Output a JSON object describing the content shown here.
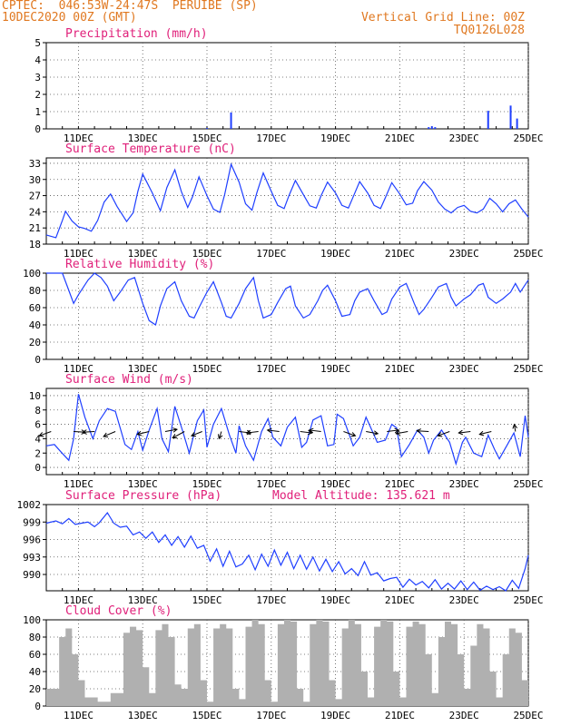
{
  "header": {
    "line1": "CPTEC:  046:53W-24:47S  PERUIBE (SP)",
    "line2": "10DEC2020 00Z (GMT)",
    "grid_note": "Vertical Grid Line: 00Z",
    "run_code": "TQ0126L028"
  },
  "colors": {
    "line": "#1f3fff",
    "title": "#e0207a",
    "header": "#e07820",
    "cloud": "#b0b0b0",
    "arrow": "#000000"
  },
  "x_axis": {
    "range_days": [
      10,
      25
    ],
    "ticks": [
      {
        "day": 11,
        "label": "11DEC"
      },
      {
        "day": 13,
        "label": "13DEC"
      },
      {
        "day": 15,
        "label": "15DEC"
      },
      {
        "day": 17,
        "label": "17DEC"
      },
      {
        "day": 19,
        "label": "19DEC"
      },
      {
        "day": 21,
        "label": "21DEC"
      },
      {
        "day": 23,
        "label": "23DEC"
      },
      {
        "day": 25,
        "label": "25DEC"
      }
    ]
  },
  "chart_data": [
    {
      "id": "precip",
      "type": "bar",
      "title": "Precipitation (mm/h)",
      "ylim": [
        0,
        5
      ],
      "yticks": [
        0,
        1,
        2,
        3,
        4,
        5
      ],
      "x": [
        15.0,
        15.75,
        21.9,
        22.0,
        22.1,
        23.75,
        24.45,
        24.65
      ],
      "values": [
        0.05,
        0.95,
        0.1,
        0.15,
        0.1,
        1.05,
        1.35,
        0.6
      ]
    },
    {
      "id": "temp",
      "type": "line",
      "title": "Surface Temperature (nC)",
      "ylim": [
        18,
        34
      ],
      "yticks": [
        18,
        21,
        24,
        27,
        30,
        33
      ],
      "x": [
        10.0,
        10.3,
        10.5,
        10.6,
        10.8,
        11.0,
        11.2,
        11.4,
        11.6,
        11.8,
        12.0,
        12.2,
        12.5,
        12.7,
        12.85,
        13.0,
        13.3,
        13.55,
        13.75,
        14.0,
        14.2,
        14.4,
        14.55,
        14.75,
        15.0,
        15.2,
        15.4,
        15.55,
        15.75,
        16.0,
        16.2,
        16.4,
        16.55,
        16.75,
        17.0,
        17.2,
        17.4,
        17.55,
        17.75,
        18.0,
        18.2,
        18.4,
        18.55,
        18.75,
        19.0,
        19.2,
        19.4,
        19.55,
        19.75,
        20.0,
        20.2,
        20.4,
        20.55,
        20.75,
        21.0,
        21.2,
        21.4,
        21.55,
        21.75,
        22.0,
        22.2,
        22.4,
        22.6,
        22.8,
        23.0,
        23.2,
        23.4,
        23.6,
        23.8,
        24.0,
        24.2,
        24.4,
        24.6,
        24.8,
        25.0
      ],
      "values": [
        19.7,
        19.2,
        22.4,
        24.1,
        22.3,
        21.2,
        20.9,
        20.4,
        22.4,
        25.8,
        27.3,
        25.0,
        22.2,
        23.8,
        27.8,
        31.0,
        27.5,
        24.2,
        28.5,
        31.8,
        27.8,
        24.8,
        26.8,
        30.5,
        27.0,
        24.5,
        23.9,
        27.2,
        32.8,
        29.5,
        25.5,
        24.3,
        27.5,
        31.2,
        27.8,
        25.2,
        24.6,
        27.0,
        29.8,
        27.2,
        25.1,
        24.7,
        27.0,
        29.5,
        27.5,
        25.2,
        24.7,
        26.8,
        29.6,
        27.5,
        25.2,
        24.6,
        26.6,
        29.4,
        27.3,
        25.3,
        25.6,
        27.9,
        29.6,
        28.0,
        25.8,
        24.5,
        23.8,
        24.8,
        25.2,
        24.1,
        23.8,
        24.5,
        26.5,
        25.5,
        24.0,
        25.5,
        26.2,
        24.5,
        23.0
      ]
    },
    {
      "id": "rh",
      "type": "line",
      "title": "Relative Humidity (%)",
      "ylim": [
        0,
        100
      ],
      "yticks": [
        0,
        20,
        40,
        60,
        80,
        100
      ],
      "x": [
        10.0,
        10.3,
        10.5,
        10.7,
        10.85,
        11.0,
        11.3,
        11.5,
        11.7,
        11.9,
        12.1,
        12.3,
        12.55,
        12.75,
        13.0,
        13.2,
        13.4,
        13.55,
        13.75,
        14.0,
        14.2,
        14.45,
        14.6,
        14.75,
        15.0,
        15.2,
        15.45,
        15.6,
        15.75,
        16.0,
        16.2,
        16.45,
        16.6,
        16.75,
        17.0,
        17.2,
        17.45,
        17.6,
        17.75,
        18.0,
        18.2,
        18.45,
        18.6,
        18.75,
        19.0,
        19.2,
        19.45,
        19.6,
        19.75,
        20.0,
        20.2,
        20.45,
        20.6,
        20.75,
        21.0,
        21.2,
        21.45,
        21.6,
        21.75,
        22.0,
        22.2,
        22.45,
        22.6,
        22.75,
        23.0,
        23.2,
        23.45,
        23.6,
        23.75,
        24.0,
        24.2,
        24.45,
        24.6,
        24.75,
        25.0
      ],
      "values": [
        100,
        100,
        100,
        80,
        65,
        75,
        92,
        100,
        95,
        85,
        68,
        78,
        92,
        95,
        65,
        45,
        40,
        62,
        82,
        90,
        68,
        50,
        48,
        60,
        78,
        90,
        66,
        50,
        48,
        65,
        82,
        95,
        68,
        48,
        52,
        66,
        82,
        85,
        62,
        48,
        52,
        68,
        80,
        86,
        68,
        50,
        52,
        68,
        78,
        82,
        68,
        52,
        55,
        70,
        84,
        88,
        65,
        52,
        58,
        72,
        84,
        88,
        72,
        62,
        70,
        75,
        86,
        88,
        72,
        65,
        70,
        78,
        88,
        78,
        92
      ]
    },
    {
      "id": "wind",
      "type": "line",
      "title": "Surface Wind (m/s)",
      "ylim": [
        -1,
        11
      ],
      "yticks": [
        0,
        2,
        4,
        6,
        8,
        10
      ],
      "x": [
        10.0,
        10.25,
        10.45,
        10.7,
        10.85,
        11.0,
        11.2,
        11.45,
        11.65,
        11.9,
        12.15,
        12.45,
        12.65,
        12.85,
        13.0,
        13.2,
        13.45,
        13.6,
        13.8,
        14.0,
        14.25,
        14.45,
        14.7,
        14.9,
        15.0,
        15.2,
        15.45,
        15.7,
        15.9,
        16.0,
        16.2,
        16.45,
        16.7,
        16.9,
        17.05,
        17.3,
        17.5,
        17.75,
        17.95,
        18.1,
        18.3,
        18.55,
        18.75,
        18.95,
        19.05,
        19.25,
        19.55,
        19.75,
        19.95,
        20.05,
        20.3,
        20.55,
        20.75,
        20.9,
        21.05,
        21.3,
        21.55,
        21.75,
        21.9,
        22.05,
        22.3,
        22.55,
        22.75,
        22.95,
        23.05,
        23.3,
        23.55,
        23.75,
        23.95,
        24.1,
        24.35,
        24.55,
        24.75,
        24.9,
        25.0
      ],
      "values": [
        3.0,
        3.2,
        2.2,
        1.0,
        4.0,
        10.2,
        7.0,
        4.0,
        6.5,
        8.2,
        7.8,
        3.2,
        2.5,
        5.0,
        2.4,
        5.2,
        8.2,
        4.0,
        2.2,
        8.5,
        5.0,
        2.0,
        6.5,
        8.0,
        2.8,
        6.0,
        8.2,
        4.5,
        2.0,
        5.8,
        3.0,
        1.0,
        5.0,
        6.8,
        4.2,
        3.0,
        5.6,
        7.0,
        2.8,
        3.5,
        6.6,
        7.2,
        3.0,
        3.2,
        7.4,
        6.8,
        3.0,
        4.2,
        7.0,
        6.0,
        3.5,
        3.8,
        6.0,
        5.5,
        1.5,
        3.2,
        5.2,
        4.2,
        2.0,
        3.8,
        5.2,
        3.5,
        0.5,
        3.5,
        4.2,
        2.0,
        1.5,
        4.5,
        2.5,
        1.2,
        3.2,
        4.8,
        1.5,
        7.2,
        4.2
      ],
      "vector_markers": [
        {
          "day": 10.15,
          "dx": -1,
          "dy": 0.6
        },
        {
          "day": 10.85,
          "dx": 1,
          "dy": 0.1
        },
        {
          "day": 11.5,
          "dx": -1,
          "dy": 0.1
        },
        {
          "day": 12.15,
          "dx": -1,
          "dy": 0.7
        },
        {
          "day": 13.2,
          "dx": -1,
          "dy": 0.4
        },
        {
          "day": 13.7,
          "dx": 1,
          "dy": -0.3
        },
        {
          "day": 14.3,
          "dx": -1,
          "dy": 0.9
        },
        {
          "day": 14.85,
          "dx": -0.9,
          "dy": 0.6
        },
        {
          "day": 15.45,
          "dx": -0.2,
          "dy": 1
        },
        {
          "day": 16.0,
          "dx": 1,
          "dy": 0.2
        },
        {
          "day": 16.6,
          "dx": -1,
          "dy": 0.2
        },
        {
          "day": 17.25,
          "dx": -1,
          "dy": -0.2
        },
        {
          "day": 17.9,
          "dx": 1,
          "dy": 0.2
        },
        {
          "day": 18.55,
          "dx": -1,
          "dy": -0.2
        },
        {
          "day": 19.25,
          "dx": 1,
          "dy": 0.6
        },
        {
          "day": 19.95,
          "dx": 1,
          "dy": 0.3
        },
        {
          "day": 20.6,
          "dx": 1,
          "dy": -0.2
        },
        {
          "day": 21.25,
          "dx": -1,
          "dy": 0.3
        },
        {
          "day": 21.9,
          "dx": -1,
          "dy": -0.1
        },
        {
          "day": 22.55,
          "dx": -1,
          "dy": 0.6
        },
        {
          "day": 23.2,
          "dx": -1,
          "dy": 0.2
        },
        {
          "day": 23.85,
          "dx": -1,
          "dy": 0.4
        },
        {
          "day": 24.6,
          "dx": -0.1,
          "dy": -1
        }
      ]
    },
    {
      "id": "press",
      "type": "line",
      "title": "Surface Pressure (hPa)",
      "extra_title": "Model Altitude: 135.621 m",
      "ylim": [
        987.2,
        1002
      ],
      "yticks": [
        990,
        993,
        996,
        999,
        1002
      ],
      "x": [
        10.0,
        10.3,
        10.5,
        10.7,
        10.9,
        11.1,
        11.3,
        11.5,
        11.65,
        11.9,
        12.1,
        12.3,
        12.5,
        12.7,
        12.9,
        13.1,
        13.3,
        13.5,
        13.7,
        13.9,
        14.1,
        14.3,
        14.5,
        14.7,
        14.9,
        15.1,
        15.3,
        15.5,
        15.7,
        15.9,
        16.1,
        16.3,
        16.5,
        16.7,
        16.9,
        17.1,
        17.3,
        17.5,
        17.7,
        17.9,
        18.1,
        18.3,
        18.5,
        18.7,
        18.9,
        19.1,
        19.3,
        19.5,
        19.7,
        19.9,
        20.1,
        20.3,
        20.5,
        20.7,
        20.9,
        21.1,
        21.3,
        21.5,
        21.7,
        21.9,
        22.1,
        22.3,
        22.5,
        22.7,
        22.9,
        23.1,
        23.3,
        23.5,
        23.7,
        23.9,
        24.1,
        24.3,
        24.5,
        24.7,
        24.9,
        25.0
      ],
      "values": [
        998.8,
        999.2,
        998.7,
        999.6,
        998.6,
        998.8,
        999.0,
        998.2,
        998.9,
        1000.6,
        998.8,
        998.1,
        998.3,
        996.8,
        997.3,
        996.2,
        997.3,
        995.5,
        996.8,
        995.0,
        996.5,
        994.7,
        996.6,
        994.5,
        995.0,
        992.3,
        994.4,
        991.4,
        994.0,
        991.3,
        991.8,
        993.3,
        990.8,
        993.5,
        991.4,
        994.2,
        991.6,
        993.8,
        991.0,
        993.3,
        990.9,
        993.0,
        990.6,
        992.6,
        990.5,
        992.2,
        990.1,
        991.0,
        989.8,
        992.2,
        989.9,
        990.3,
        988.9,
        989.3,
        989.5,
        987.8,
        989.2,
        988.2,
        988.8,
        987.7,
        989.1,
        987.5,
        988.5,
        987.5,
        988.9,
        987.4,
        988.7,
        987.3,
        988.0,
        987.4,
        987.9,
        987.2,
        989.0,
        987.6,
        991.0,
        993.3
      ]
    },
    {
      "id": "cloud",
      "type": "bar",
      "title": "Cloud Cover (%)",
      "ylim": [
        0,
        100
      ],
      "yticks": [
        0,
        20,
        40,
        60,
        80,
        100
      ],
      "x": [
        10.0,
        10.4,
        10.6,
        10.8,
        11.0,
        11.2,
        11.6,
        12.0,
        12.4,
        12.6,
        12.8,
        13.0,
        13.2,
        13.4,
        13.6,
        13.8,
        14.0,
        14.2,
        14.4,
        14.6,
        14.8,
        15.0,
        15.2,
        15.4,
        15.6,
        15.8,
        16.0,
        16.2,
        16.4,
        16.6,
        16.8,
        17.0,
        17.2,
        17.4,
        17.6,
        17.8,
        18.0,
        18.2,
        18.4,
        18.6,
        18.8,
        19.0,
        19.2,
        19.4,
        19.6,
        19.8,
        20.0,
        20.2,
        20.4,
        20.6,
        20.8,
        21.0,
        21.2,
        21.4,
        21.6,
        21.8,
        22.0,
        22.2,
        22.4,
        22.6,
        22.8,
        23.0,
        23.2,
        23.4,
        23.6,
        23.8,
        24.0,
        24.2,
        24.4,
        24.6,
        24.8,
        25.0
      ],
      "values": [
        20,
        80,
        90,
        60,
        30,
        10,
        5,
        15,
        85,
        92,
        88,
        45,
        15,
        88,
        95,
        80,
        25,
        20,
        90,
        95,
        30,
        5,
        90,
        95,
        90,
        20,
        8,
        92,
        100,
        95,
        30,
        5,
        95,
        100,
        98,
        20,
        5,
        95,
        100,
        98,
        30,
        8,
        90,
        100,
        95,
        40,
        10,
        92,
        100,
        98,
        40,
        10,
        92,
        98,
        95,
        60,
        15,
        80,
        98,
        95,
        60,
        20,
        70,
        95,
        90,
        40,
        10,
        60,
        90,
        85,
        30,
        5
      ]
    }
  ]
}
